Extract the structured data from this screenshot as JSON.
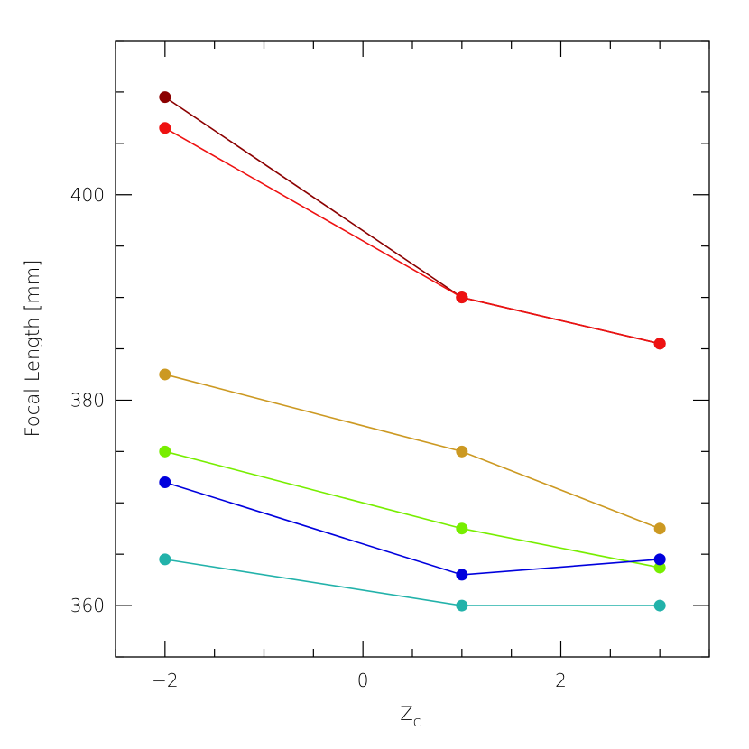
{
  "chart_data": {
    "type": "line",
    "title": "",
    "xlabel": "Z",
    "xlabel_sub": "c",
    "ylabel": "Focal Length",
    "ylabel_unit": "[mm]",
    "xlim": [
      -2.5,
      3.5
    ],
    "ylim": [
      355,
      415
    ],
    "x_ticks": [
      -2,
      0,
      2
    ],
    "x_tick_labels": [
      "−2",
      "0",
      "2"
    ],
    "y_ticks": [
      360,
      380,
      400
    ],
    "y_tick_labels": [
      "360",
      "380",
      "400"
    ],
    "x_minor_step": 0.5,
    "y_minor_step": 5,
    "grid": false,
    "x": [
      -2,
      1,
      3
    ],
    "series": [
      {
        "color": "#8b0000",
        "values": [
          409.5,
          390.0,
          385.5
        ]
      },
      {
        "color": "#ee1111",
        "values": [
          406.5,
          390.0,
          385.5
        ]
      },
      {
        "color": "#cc9922",
        "values": [
          382.5,
          375.0,
          367.5
        ]
      },
      {
        "color": "#77ee00",
        "values": [
          375.0,
          367.5,
          363.7
        ]
      },
      {
        "color": "#0000dd",
        "values": [
          372.0,
          363.0,
          364.5
        ]
      },
      {
        "color": "#22b2aa",
        "values": [
          364.5,
          360.0,
          360.0
        ]
      }
    ]
  }
}
